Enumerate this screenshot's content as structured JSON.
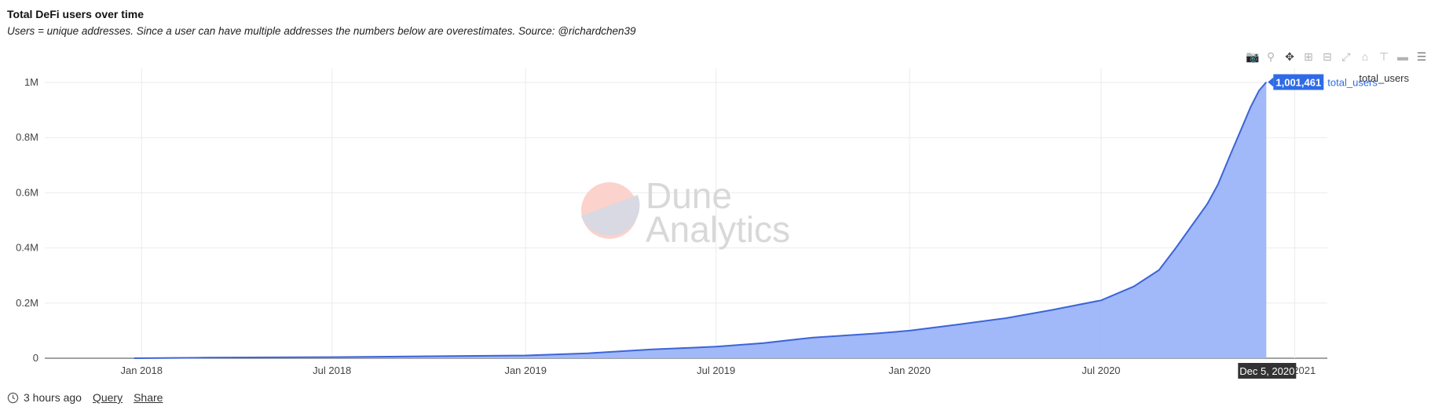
{
  "header": {
    "title": "Total DeFi users over time",
    "subtitle": "Users = unique addresses. Since a user can have multiple addresses the numbers below are overestimates. Source: @richardchen39"
  },
  "watermark": {
    "line1": "Dune",
    "line2": "Analytics"
  },
  "legend": {
    "label": "total_users"
  },
  "toolbar": [
    "camera-icon",
    "zoom-icon",
    "pan-icon",
    "zoom-in-icon",
    "zoom-out-icon",
    "autoscale-icon",
    "home-icon",
    "spike-lines-icon",
    "hover-closest-icon",
    "hover-compare-icon"
  ],
  "footer": {
    "updated": "3 hours ago",
    "query_link": "Query",
    "share_link": "Share"
  },
  "hover": {
    "value_label": "1,001,461",
    "series_label": "total_users",
    "date_label": "Dec 5, 2020"
  },
  "colors": {
    "area_fill": "#9cb5f9",
    "line": "#3d64d8",
    "tooltip_bg": "#2f6be6",
    "axis_tip_bg": "#333333"
  },
  "chart_data": {
    "type": "area",
    "title": "Total DeFi users over time",
    "x_tick_labels": [
      "Jan 2018",
      "Jul 2018",
      "Jan 2019",
      "Jul 2019",
      "Jan 2020",
      "Jul 2020",
      "Jan 2021"
    ],
    "x_tick_dates": [
      "2018-01-01",
      "2018-07-01",
      "2019-01-01",
      "2019-07-01",
      "2020-01-01",
      "2020-07-01",
      "2021-01-01"
    ],
    "xlim": [
      "2017-10-01",
      "2021-02-01"
    ],
    "y_tick_labels": [
      "0",
      "0.2M",
      "0.4M",
      "0.6M",
      "0.8M",
      "1M"
    ],
    "y_tick_values": [
      0,
      200000,
      400000,
      600000,
      800000,
      1000000
    ],
    "ylim": [
      0,
      1000000
    ],
    "grid": true,
    "legend": "top-right",
    "series": [
      {
        "name": "total_users",
        "x": [
          "2017-12-25",
          "2018-03-01",
          "2018-07-01",
          "2018-10-01",
          "2019-01-01",
          "2019-03-01",
          "2019-05-01",
          "2019-07-01",
          "2019-08-15",
          "2019-10-01",
          "2019-12-01",
          "2020-01-01",
          "2020-02-15",
          "2020-04-01",
          "2020-05-15",
          "2020-07-01",
          "2020-08-01",
          "2020-08-25",
          "2020-09-10",
          "2020-09-25",
          "2020-10-10",
          "2020-10-20",
          "2020-11-01",
          "2020-11-10",
          "2020-11-20",
          "2020-11-28",
          "2020-12-05"
        ],
        "y": [
          0,
          2000,
          4000,
          7000,
          10000,
          18000,
          32000,
          42000,
          55000,
          75000,
          90000,
          100000,
          122000,
          145000,
          175000,
          210000,
          260000,
          320000,
          400000,
          480000,
          560000,
          630000,
          740000,
          820000,
          910000,
          970000,
          1001461
        ]
      }
    ]
  }
}
